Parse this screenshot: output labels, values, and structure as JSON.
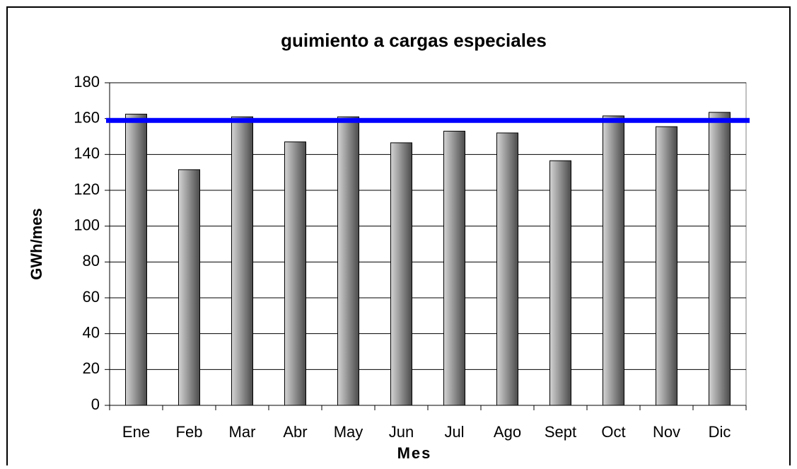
{
  "chart_data": {
    "type": "bar",
    "title": "guimiento a cargas especiales",
    "x_label": "Mes",
    "y_label": "GWh/mes",
    "categories": [
      "Ene",
      "Feb",
      "Mar",
      "Abr",
      "May",
      "Jun",
      "Jul",
      "Ago",
      "Sept",
      "Oct",
      "Nov",
      "Dic"
    ],
    "values": [
      162.5,
      131.5,
      161,
      147,
      161,
      146.5,
      153,
      152,
      136.5,
      161.5,
      155.5,
      163.5
    ],
    "color": "#9a9a9a",
    "reference_line": {
      "value": 159,
      "color": "#0000ff"
    },
    "ylim": [
      0,
      180
    ],
    "yticks": [
      0,
      20,
      40,
      60,
      80,
      100,
      120,
      140,
      160,
      180
    ],
    "grid": true
  }
}
